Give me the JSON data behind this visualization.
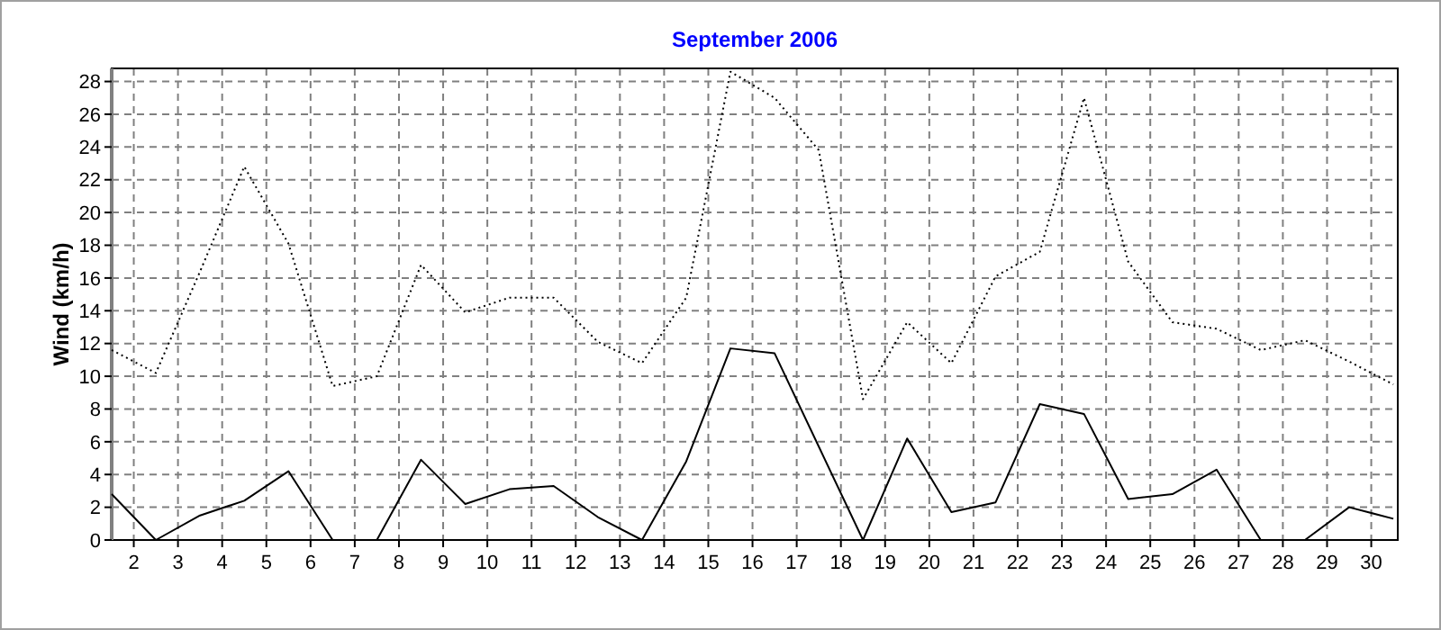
{
  "chart_data": {
    "type": "line",
    "title": "September 2006",
    "ylabel": "Wind  (km/h)",
    "x": [
      1.5,
      2.5,
      3.5,
      4.5,
      5.5,
      6.5,
      7.5,
      8.5,
      9.5,
      10.5,
      11.5,
      12.5,
      13.5,
      14.5,
      15.5,
      16.5,
      17.5,
      18.5,
      19.5,
      20.5,
      21.5,
      22.5,
      23.5,
      24.5,
      25.5,
      26.5,
      27.5,
      28.5,
      29.5,
      30.5
    ],
    "series": [
      {
        "color": "#000000",
        "line_style": "dotted",
        "values": [
          11.6,
          10.2,
          16.4,
          22.8,
          18.1,
          9.4,
          10.0,
          16.8,
          13.9,
          14.8,
          14.8,
          12.1,
          10.8,
          14.8,
          28.6,
          27.0,
          23.8,
          8.6,
          13.3,
          10.8,
          16.1,
          17.6,
          27.0,
          17.0,
          13.3,
          12.9,
          11.6,
          12.2,
          10.9,
          9.5
        ]
      },
      {
        "color": "#000000",
        "line_style": "solid",
        "values": [
          2.8,
          0,
          1.5,
          2.4,
          4.2,
          0,
          0,
          4.9,
          2.2,
          3.1,
          3.3,
          1.4,
          0,
          4.8,
          11.7,
          11.4,
          5.7,
          0,
          6.2,
          1.7,
          2.3,
          8.3,
          7.7,
          2.5,
          2.8,
          4.3,
          0,
          0,
          2.0,
          1.3
        ]
      }
    ],
    "xlim": [
      1.5,
      30.6
    ],
    "xticks": [
      2,
      3,
      4,
      5,
      6,
      7,
      8,
      9,
      10,
      11,
      12,
      13,
      14,
      15,
      16,
      17,
      18,
      19,
      20,
      21,
      22,
      23,
      24,
      25,
      26,
      27,
      28,
      29,
      30
    ],
    "ylim": [
      0,
      28.8
    ],
    "yticks": [
      0,
      2,
      4,
      6,
      8,
      10,
      12,
      14,
      16,
      18,
      20,
      22,
      24,
      26,
      28
    ],
    "grid": true,
    "marker": "none"
  }
}
